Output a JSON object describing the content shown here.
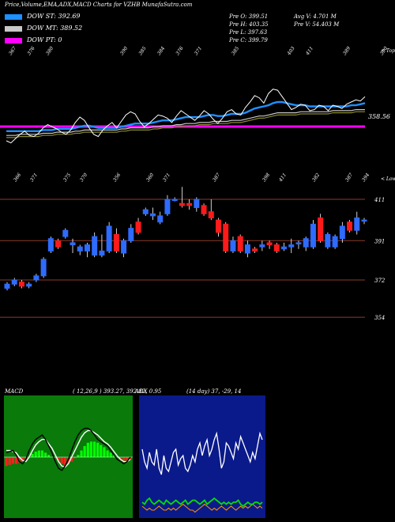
{
  "header": {
    "title": "Price,Volume,EMA,ADX,MACD Charts for VZHB MunafaSutra.com",
    "legend": [
      {
        "label": "DOW ST: 392.69",
        "color": "#1e90ff"
      },
      {
        "label": "DOW MT: 389.52",
        "color": "#c8c8c8"
      },
      {
        "label": "DOW PT: 0",
        "color": "#ff00ff"
      }
    ],
    "info": {
      "prev_open": "Pre   O: 399.51",
      "prev_high": "Pre   H: 403.35",
      "prev_low": "Pre   L: 397.63",
      "prev_close": "Pre   C: 399.79",
      "avg_volume": "Avg V: 4.701 M",
      "prev_volume": "Pre   V: 54.403 M"
    }
  },
  "colors": {
    "ema_fast": "#1e90ff",
    "ema_slow": "#8b8b2e",
    "dow_pt": "#ff00ff",
    "candle_up": "#2e6bff",
    "candle_down": "#ff1a1a",
    "grid": "#8b3a2a",
    "macd_bg": "#0a7a0a",
    "adx_bg": "#0a1a8a",
    "adx_line": "#ff8c00",
    "di_line": "#00e000"
  },
  "chart_data": [
    {
      "type": "line",
      "name": "ema-panel",
      "top_labels": [
        "367",
        "376",
        "380",
        "",
        "",
        "",
        "390",
        "385",
        "384",
        "376",
        "371",
        "",
        "385",
        "",
        "",
        "403",
        "411",
        "",
        "389",
        "",
        "390"
      ],
      "bottom_labels": [
        "366",
        "371",
        "",
        "375",
        "370",
        "",
        "356",
        "",
        "360",
        "371",
        "",
        "",
        "387",
        "",
        "",
        "398",
        "411",
        "",
        "382",
        "",
        "387",
        "394"
      ],
      "right_label_top": "< Tops",
      "right_label_bottom": "< Lows",
      "price_label": "358.56",
      "price_series": [
        360,
        358,
        362,
        366,
        369,
        365,
        364,
        367,
        372,
        375,
        373,
        371,
        368,
        366,
        370,
        377,
        382,
        379,
        372,
        366,
        364,
        370,
        374,
        377,
        372,
        378,
        384,
        387,
        385,
        378,
        373,
        376,
        380,
        384,
        383,
        381,
        377,
        383,
        388,
        385,
        382,
        379,
        383,
        388,
        385,
        380,
        376,
        381,
        387,
        389,
        385,
        384,
        391,
        396,
        402,
        400,
        395,
        404,
        408,
        407,
        401,
        395,
        389,
        391,
        394,
        393,
        388,
        389,
        393,
        392,
        388,
        393,
        392,
        390,
        394,
        396,
        398,
        397,
        401
      ],
      "ema_fast": [
        369,
        369,
        369,
        369,
        369,
        369,
        369,
        369,
        370,
        370,
        370,
        371,
        371,
        371,
        371,
        372,
        373,
        374,
        374,
        373,
        372,
        372,
        372,
        372,
        372,
        373,
        374,
        375,
        376,
        376,
        376,
        376,
        377,
        378,
        379,
        379,
        379,
        380,
        381,
        382,
        382,
        382,
        382,
        383,
        384,
        384,
        383,
        383,
        384,
        385,
        385,
        385,
        386,
        388,
        390,
        391,
        392,
        393,
        395,
        396,
        396,
        395,
        394,
        393,
        393,
        393,
        392,
        392,
        392,
        392,
        392,
        392,
        392,
        392,
        392,
        393,
        393,
        394,
        395
      ],
      "ema_slow": [
        365,
        365,
        365,
        366,
        366,
        366,
        366,
        366,
        367,
        367,
        367,
        368,
        368,
        368,
        368,
        369,
        369,
        370,
        370,
        370,
        370,
        370,
        370,
        370,
        370,
        371,
        371,
        372,
        372,
        372,
        372,
        372,
        373,
        373,
        374,
        374,
        374,
        375,
        375,
        376,
        376,
        376,
        377,
        377,
        377,
        378,
        378,
        378,
        378,
        379,
        379,
        379,
        380,
        381,
        382,
        383,
        383,
        384,
        385,
        386,
        386,
        386,
        386,
        386,
        387,
        387,
        387,
        387,
        387,
        387,
        387,
        388,
        388,
        388,
        388,
        388,
        389,
        389,
        389
      ],
      "dow_pt_level": 358.56
    },
    {
      "type": "bar",
      "name": "candlestick-panel",
      "right_labels": [
        "411",
        "391",
        "372",
        "354"
      ],
      "y_gridlines": [
        411,
        391,
        372,
        354
      ],
      "candles": [
        {
          "o": 368,
          "h": 371,
          "l": 367,
          "c": 370
        },
        {
          "o": 370,
          "h": 373,
          "l": 369,
          "c": 372
        },
        {
          "o": 371,
          "h": 372,
          "l": 368,
          "c": 369
        },
        {
          "o": 369,
          "h": 371,
          "l": 368,
          "c": 370
        },
        {
          "o": 372,
          "h": 375,
          "l": 371,
          "c": 374
        },
        {
          "o": 374,
          "h": 383,
          "l": 373,
          "c": 382
        },
        {
          "o": 386,
          "h": 393,
          "l": 385,
          "c": 392
        },
        {
          "o": 391,
          "h": 392,
          "l": 387,
          "c": 388
        },
        {
          "o": 393,
          "h": 397,
          "l": 392,
          "c": 396
        },
        {
          "o": 389,
          "h": 392,
          "l": 385,
          "c": 390
        },
        {
          "o": 386,
          "h": 389,
          "l": 384,
          "c": 388
        },
        {
          "o": 386,
          "h": 390,
          "l": 383,
          "c": 389
        },
        {
          "o": 384,
          "h": 395,
          "l": 383,
          "c": 393
        },
        {
          "o": 384,
          "h": 394,
          "l": 383,
          "c": 386
        },
        {
          "o": 386,
          "h": 400,
          "l": 385,
          "c": 398
        },
        {
          "o": 394,
          "h": 397,
          "l": 385,
          "c": 386
        },
        {
          "o": 385,
          "h": 392,
          "l": 383,
          "c": 391
        },
        {
          "o": 391,
          "h": 399,
          "l": 390,
          "c": 397
        },
        {
          "o": 400,
          "h": 402,
          "l": 394,
          "c": 395
        },
        {
          "o": 404,
          "h": 407,
          "l": 403,
          "c": 406
        },
        {
          "o": 403,
          "h": 407,
          "l": 401,
          "c": 404
        },
        {
          "o": 400,
          "h": 405,
          "l": 399,
          "c": 403
        },
        {
          "o": 404,
          "h": 413,
          "l": 403,
          "c": 411
        },
        {
          "o": 411,
          "h": 412,
          "l": 410,
          "c": 411
        },
        {
          "o": 409,
          "h": 417,
          "l": 407,
          "c": 408
        },
        {
          "o": 409,
          "h": 411,
          "l": 406,
          "c": 408
        },
        {
          "o": 407,
          "h": 412,
          "l": 405,
          "c": 411
        },
        {
          "o": 408,
          "h": 409,
          "l": 403,
          "c": 404
        },
        {
          "o": 405,
          "h": 411,
          "l": 401,
          "c": 402
        },
        {
          "o": 401,
          "h": 402,
          "l": 393,
          "c": 395
        },
        {
          "o": 399,
          "h": 400,
          "l": 385,
          "c": 386
        },
        {
          "o": 386,
          "h": 393,
          "l": 385,
          "c": 391
        },
        {
          "o": 393,
          "h": 394,
          "l": 385,
          "c": 386
        },
        {
          "o": 385,
          "h": 391,
          "l": 383,
          "c": 389
        },
        {
          "o": 387,
          "h": 388,
          "l": 385,
          "c": 386
        },
        {
          "o": 388,
          "h": 391,
          "l": 386,
          "c": 389
        },
        {
          "o": 390,
          "h": 391,
          "l": 387,
          "c": 389
        },
        {
          "o": 389,
          "h": 390,
          "l": 385,
          "c": 386
        },
        {
          "o": 387,
          "h": 390,
          "l": 386,
          "c": 388
        },
        {
          "o": 388,
          "h": 392,
          "l": 385,
          "c": 389
        },
        {
          "o": 390,
          "h": 391,
          "l": 387,
          "c": 390
        },
        {
          "o": 388,
          "h": 393,
          "l": 386,
          "c": 392
        },
        {
          "o": 388,
          "h": 401,
          "l": 387,
          "c": 399
        },
        {
          "o": 402,
          "h": 404,
          "l": 390,
          "c": 391
        },
        {
          "o": 388,
          "h": 395,
          "l": 387,
          "c": 394
        },
        {
          "o": 388,
          "h": 394,
          "l": 387,
          "c": 393
        },
        {
          "o": 392,
          "h": 400,
          "l": 390,
          "c": 398
        },
        {
          "o": 400,
          "h": 401,
          "l": 395,
          "c": 396
        },
        {
          "o": 396,
          "h": 405,
          "l": 394,
          "c": 402
        },
        {
          "o": 401,
          "h": 402,
          "l": 399,
          "c": 401
        }
      ]
    },
    {
      "type": "bar",
      "name": "macd-panel",
      "label": "MACD",
      "params": "( 12,26,9 ) 393.27, 392.82, 0.95",
      "histogram": [
        -0.4,
        -0.35,
        -0.3,
        -0.3,
        -0.25,
        -0.2,
        -0.1,
        0,
        0.15,
        0.25,
        0.3,
        0.3,
        0.2,
        0.1,
        0,
        -0.05,
        -0.15,
        -0.3,
        -0.35,
        -0.3,
        -0.2,
        -0.05,
        0.1,
        0.3,
        0.5,
        0.65,
        0.7,
        0.7,
        0.65,
        0.55,
        0.45,
        0.3,
        0.2,
        0.1,
        0,
        -0.1,
        -0.15,
        -0.15,
        -0.1
      ],
      "macd_line": [
        0.2,
        0.25,
        0.3,
        0.1,
        -0.2,
        -0.3,
        -0.1,
        0.3,
        0.6,
        0.8,
        0.9,
        1.0,
        0.8,
        0.5,
        0.2,
        -0.2,
        -0.5,
        -0.6,
        -0.4,
        -0.1,
        0.3,
        0.7,
        1.0,
        1.2,
        1.3,
        1.3,
        1.2,
        1.0,
        0.8,
        0.7,
        0.6,
        0.5,
        0.3,
        0.1,
        -0.1,
        -0.2,
        -0.3,
        -0.2,
        0.0
      ],
      "signal_line": [
        0.3,
        0.3,
        0.25,
        0.2,
        0.0,
        -0.15,
        -0.2,
        0.0,
        0.3,
        0.55,
        0.7,
        0.8,
        0.8,
        0.6,
        0.4,
        0.1,
        -0.2,
        -0.4,
        -0.45,
        -0.3,
        0.0,
        0.3,
        0.6,
        0.9,
        1.1,
        1.2,
        1.2,
        1.1,
        1.0,
        0.85,
        0.7,
        0.6,
        0.45,
        0.25,
        0.05,
        -0.1,
        -0.2,
        -0.2,
        -0.1
      ]
    },
    {
      "type": "line",
      "name": "adx-panel",
      "label": "ADX",
      "params": "(14 day) 37, -29, 14",
      "adx_white": [
        22,
        18,
        16,
        21,
        18,
        17,
        22,
        16,
        14,
        20,
        16,
        15,
        18,
        21,
        22,
        17,
        19,
        20,
        16,
        15,
        17,
        20,
        18,
        22,
        24,
        20,
        23,
        25,
        20,
        22,
        25,
        27,
        22,
        16,
        18,
        24,
        23,
        21,
        19,
        24,
        22,
        26,
        24,
        22,
        20,
        18,
        21,
        19,
        23,
        27,
        25
      ],
      "di_green": [
        6,
        5,
        7,
        8,
        6,
        5,
        6,
        7,
        6,
        5,
        7,
        6,
        5,
        6,
        7,
        6,
        5,
        6,
        7,
        5,
        6,
        7,
        7,
        6,
        5,
        6,
        7,
        5,
        6,
        7,
        8,
        7,
        6,
        5,
        6,
        5,
        6,
        5,
        6,
        6,
        7,
        5,
        4,
        5,
        6,
        5,
        5,
        6,
        6,
        5,
        6
      ],
      "di_orange": [
        4,
        3,
        2,
        3,
        2,
        2,
        3,
        4,
        3,
        2,
        2,
        3,
        2,
        3,
        2,
        3,
        4,
        5,
        4,
        3,
        2,
        2,
        1,
        2,
        3,
        4,
        5,
        4,
        3,
        2,
        3,
        2,
        3,
        4,
        3,
        2,
        3,
        4,
        3,
        2,
        3,
        4,
        3,
        4,
        3,
        4,
        5,
        4,
        3,
        4,
        3
      ]
    }
  ]
}
